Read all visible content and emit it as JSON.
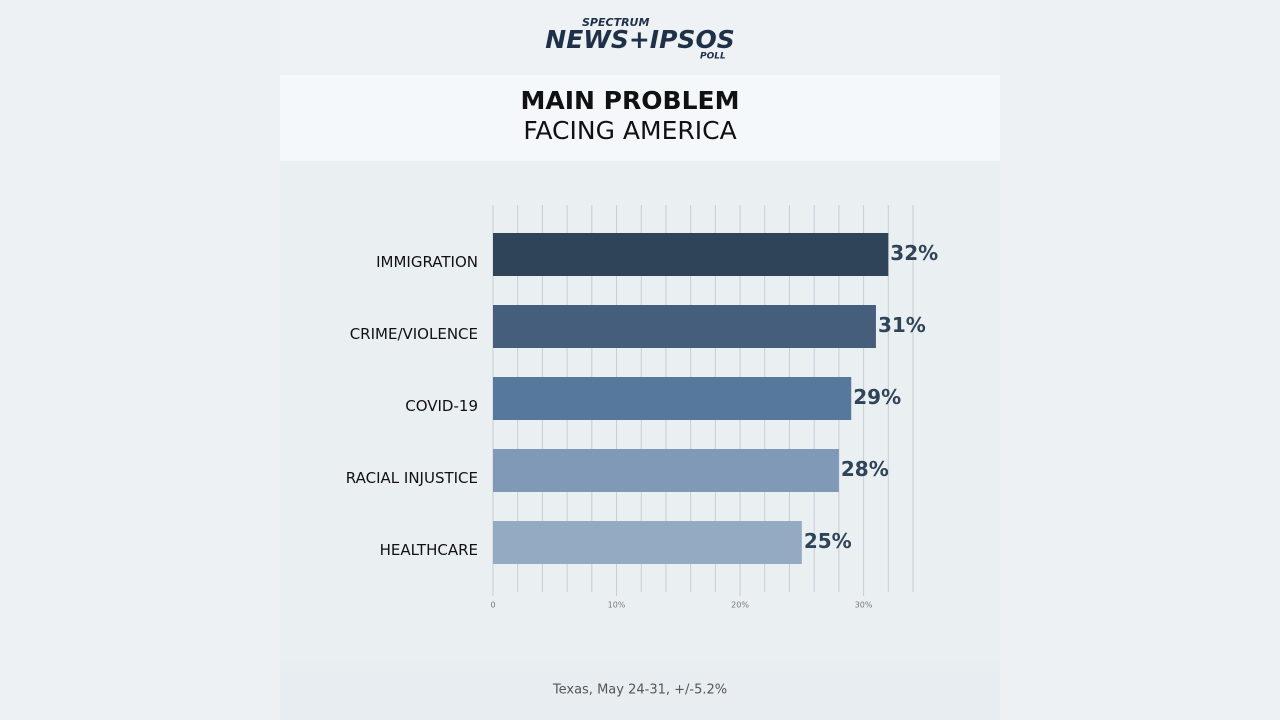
{
  "brand": {
    "top": "SPECTRUM",
    "main": "NEWS+IPSOS",
    "bottom": "POLL"
  },
  "chart_data": {
    "type": "hbar",
    "title": "MAIN PROBLEM",
    "subtitle": "FACING AMERICA",
    "categories": [
      "IMMIGRATION",
      "CRIME/VIOLENCE",
      "COVID-19",
      "RACIAL INJUSTICE",
      "HEALTHCARE"
    ],
    "values": [
      32,
      31,
      29,
      28,
      25
    ],
    "value_labels": [
      "32%",
      "31%",
      "29%",
      "28%",
      "25%"
    ],
    "colors": [
      "#2f4459",
      "#455e7c",
      "#56789c",
      "#8099b7",
      "#94aac3"
    ],
    "xlim": [
      0,
      34
    ],
    "xticks": [
      0,
      {
        "value": 10,
        "label": "10%"
      },
      {
        "value": 20,
        "label": "20%"
      },
      {
        "value": 30,
        "label": "30%"
      }
    ],
    "xgrid": [
      0,
      2,
      4,
      6,
      8,
      10,
      12,
      14,
      16,
      18,
      20,
      22,
      24,
      26,
      28,
      30,
      32,
      34
    ],
    "note": "Texas, May 24-31, +/-5.2%"
  }
}
